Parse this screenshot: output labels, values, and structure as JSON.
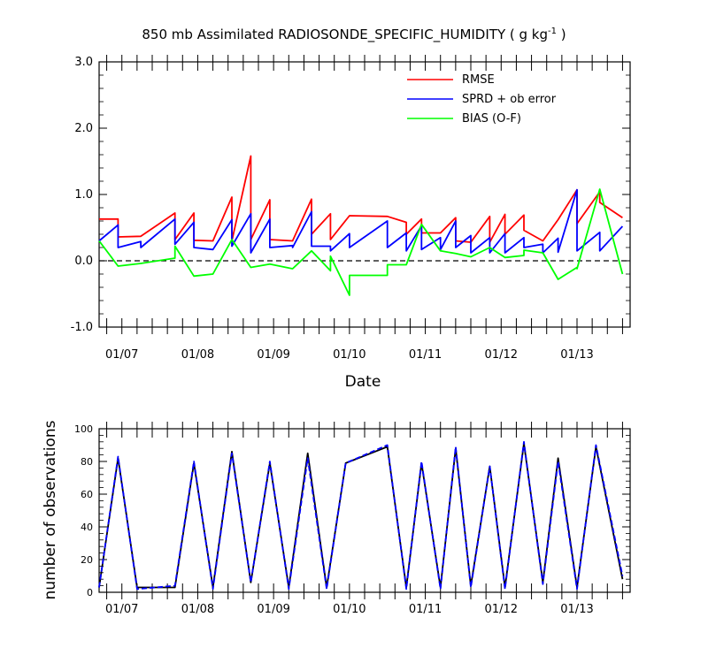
{
  "chart_data": [
    {
      "type": "line",
      "title": "850 mb Assimilated RADIOSONDE_SPECIFIC_HUMIDITY ( g kg",
      "title_sup": "-1",
      "title_end": " )",
      "xlabel": "Date",
      "ylabel": "",
      "xlim": [
        0,
        35
      ],
      "ylim": [
        -1.0,
        3.0
      ],
      "yticks": [
        -1.0,
        0.0,
        1.0,
        2.0,
        3.0
      ],
      "ytick_labels": [
        "-1.0",
        "0.0",
        "1.0",
        "2.0",
        "3.0"
      ],
      "xtick_labels": [
        "01/07",
        "01/08",
        "01/09",
        "01/10",
        "01/11",
        "01/12",
        "01/13"
      ],
      "xtick_positions": [
        1.5,
        6.5,
        11.5,
        16.5,
        21.5,
        26.5,
        31.5
      ],
      "reference_line": 0.0,
      "legend_position": "top-right",
      "series": [
        {
          "name": "RMSE",
          "color": "#ff0000",
          "x": [
            0,
            1.25,
            1.25,
            2.75,
            2.75,
            5,
            5,
            6.25,
            6.25,
            7.5,
            7.5,
            8.75,
            8.75,
            10,
            10,
            11.25,
            11.25,
            12.75,
            12.75,
            14,
            14,
            15.25,
            15.25,
            16.5,
            16.5,
            19,
            19,
            20.25,
            20.25,
            21.25,
            21.25,
            22.5,
            22.5,
            23.5,
            23.5,
            24.5,
            24.5,
            25.75,
            25.75,
            26.75,
            26.75,
            28,
            28,
            29.25,
            29.25,
            30.25,
            30.25,
            31.5,
            31.5,
            33,
            33,
            34.5
          ],
          "y": [
            0.63,
            0.63,
            0.36,
            0.37,
            0.37,
            0.72,
            0.32,
            0.72,
            0.31,
            0.3,
            0.3,
            0.96,
            0.3,
            1.58,
            0.32,
            0.92,
            0.32,
            0.3,
            0.3,
            0.93,
            0.4,
            0.71,
            0.32,
            0.68,
            0.68,
            0.67,
            0.67,
            0.58,
            0.4,
            0.63,
            0.42,
            0.42,
            0.42,
            0.65,
            0.3,
            0.28,
            0.28,
            0.67,
            0.28,
            0.7,
            0.4,
            0.69,
            0.46,
            0.3,
            0.3,
            0.62,
            0.62,
            1.07,
            0.56,
            1.04,
            0.88,
            0.65
          ]
        },
        {
          "name": "SPRD + ob error",
          "color": "#0000ff",
          "x": [
            0,
            1.25,
            1.25,
            2.75,
            2.75,
            5,
            5,
            6.25,
            6.25,
            7.5,
            7.5,
            8.75,
            8.75,
            10,
            10,
            11.25,
            11.25,
            12.75,
            12.75,
            14,
            14,
            15.25,
            15.25,
            16.5,
            16.5,
            19,
            19,
            20.25,
            20.25,
            21.25,
            21.25,
            22.5,
            22.5,
            23.5,
            23.5,
            24.5,
            24.5,
            25.75,
            25.75,
            26.75,
            26.75,
            28,
            28,
            29.25,
            29.25,
            30.25,
            30.25,
            31.5,
            31.5,
            33,
            33,
            34.5
          ],
          "y": [
            0.3,
            0.54,
            0.2,
            0.29,
            0.2,
            0.63,
            0.25,
            0.58,
            0.2,
            0.17,
            0.17,
            0.62,
            0.22,
            0.71,
            0.12,
            0.63,
            0.2,
            0.23,
            0.2,
            0.74,
            0.22,
            0.22,
            0.15,
            0.41,
            0.2,
            0.6,
            0.2,
            0.42,
            0.15,
            0.53,
            0.17,
            0.35,
            0.17,
            0.6,
            0.2,
            0.38,
            0.12,
            0.35,
            0.12,
            0.41,
            0.12,
            0.35,
            0.2,
            0.25,
            0.12,
            0.34,
            0.13,
            1.07,
            0.15,
            0.43,
            0.15,
            0.52
          ]
        },
        {
          "name": "BIAS (O-F)",
          "color": "#00ff00",
          "x": [
            0,
            1.25,
            2.75,
            5,
            5,
            6.25,
            6.25,
            7.5,
            8.75,
            8.75,
            10,
            10,
            11.25,
            12.75,
            12.75,
            14,
            14,
            15.25,
            15.25,
            16.5,
            16.5,
            19,
            19,
            20.25,
            20.25,
            21.25,
            22.5,
            22.5,
            23.5,
            24.5,
            25.75,
            26.75,
            26.75,
            28,
            28,
            29.25,
            29.25,
            30.25,
            30.25,
            31.5,
            31.5,
            33,
            34.5
          ],
          "y": [
            0.3,
            -0.08,
            -0.04,
            0.04,
            0.22,
            -0.23,
            -0.23,
            -0.2,
            0.32,
            0.32,
            -0.1,
            -0.1,
            -0.05,
            -0.12,
            -0.12,
            0.15,
            0.15,
            -0.15,
            0.07,
            -0.52,
            -0.22,
            -0.22,
            -0.06,
            -0.06,
            -0.06,
            0.55,
            0.15,
            0.15,
            0.11,
            0.06,
            0.2,
            0.05,
            0.05,
            0.08,
            0.16,
            0.12,
            0.12,
            -0.28,
            -0.28,
            -0.1,
            -0.12,
            1.08,
            -0.2
          ]
        }
      ]
    },
    {
      "type": "line",
      "title": "",
      "xlabel": "",
      "ylabel": "number of observations",
      "xlim": [
        0,
        35
      ],
      "ylim": [
        0,
        100
      ],
      "yticks": [
        0,
        20,
        40,
        60,
        80,
        100
      ],
      "ytick_labels": [
        "0",
        "20",
        "40",
        "60",
        "80",
        "100"
      ],
      "xtick_labels": [
        "01/07",
        "01/08",
        "01/09",
        "01/10",
        "01/11",
        "01/12",
        "01/13"
      ],
      "xtick_positions": [
        1.5,
        6.5,
        11.5,
        16.5,
        21.5,
        26.5,
        31.5
      ],
      "series": [
        {
          "name": "",
          "color": "#000000",
          "style": "solid",
          "x": [
            0,
            1.25,
            2.5,
            5,
            6.25,
            7.5,
            8.75,
            10,
            11.25,
            12.5,
            13.75,
            15,
            16.25,
            19,
            20.25,
            21.25,
            22.5,
            23.5,
            24.5,
            25.75,
            26.75,
            28,
            29.25,
            30.25,
            31.5,
            32.75,
            34.5
          ],
          "y": [
            3,
            82,
            3,
            3,
            79,
            3,
            86,
            6,
            79,
            3,
            85,
            3,
            79,
            89,
            3,
            79,
            3,
            88,
            4,
            77,
            3,
            91,
            6,
            82,
            3,
            89,
            8
          ]
        },
        {
          "name": "",
          "color": "#0000ff",
          "style": "dashed",
          "x": [
            0,
            1.25,
            2.5,
            5,
            6.25,
            7.5,
            8.75,
            10,
            11.25,
            12.5,
            13.75,
            15,
            16.25,
            19,
            20.25,
            21.25,
            22.5,
            23.5,
            24.5,
            25.75,
            26.75,
            28,
            29.25,
            30.25,
            31.5,
            32.75,
            34.5
          ],
          "y": [
            3,
            83,
            2,
            4,
            80,
            2,
            85,
            6,
            80,
            2,
            82,
            2,
            79,
            90,
            2,
            80,
            2,
            89,
            3,
            77,
            2,
            92,
            5,
            80,
            2,
            90,
            10
          ]
        }
      ]
    }
  ]
}
